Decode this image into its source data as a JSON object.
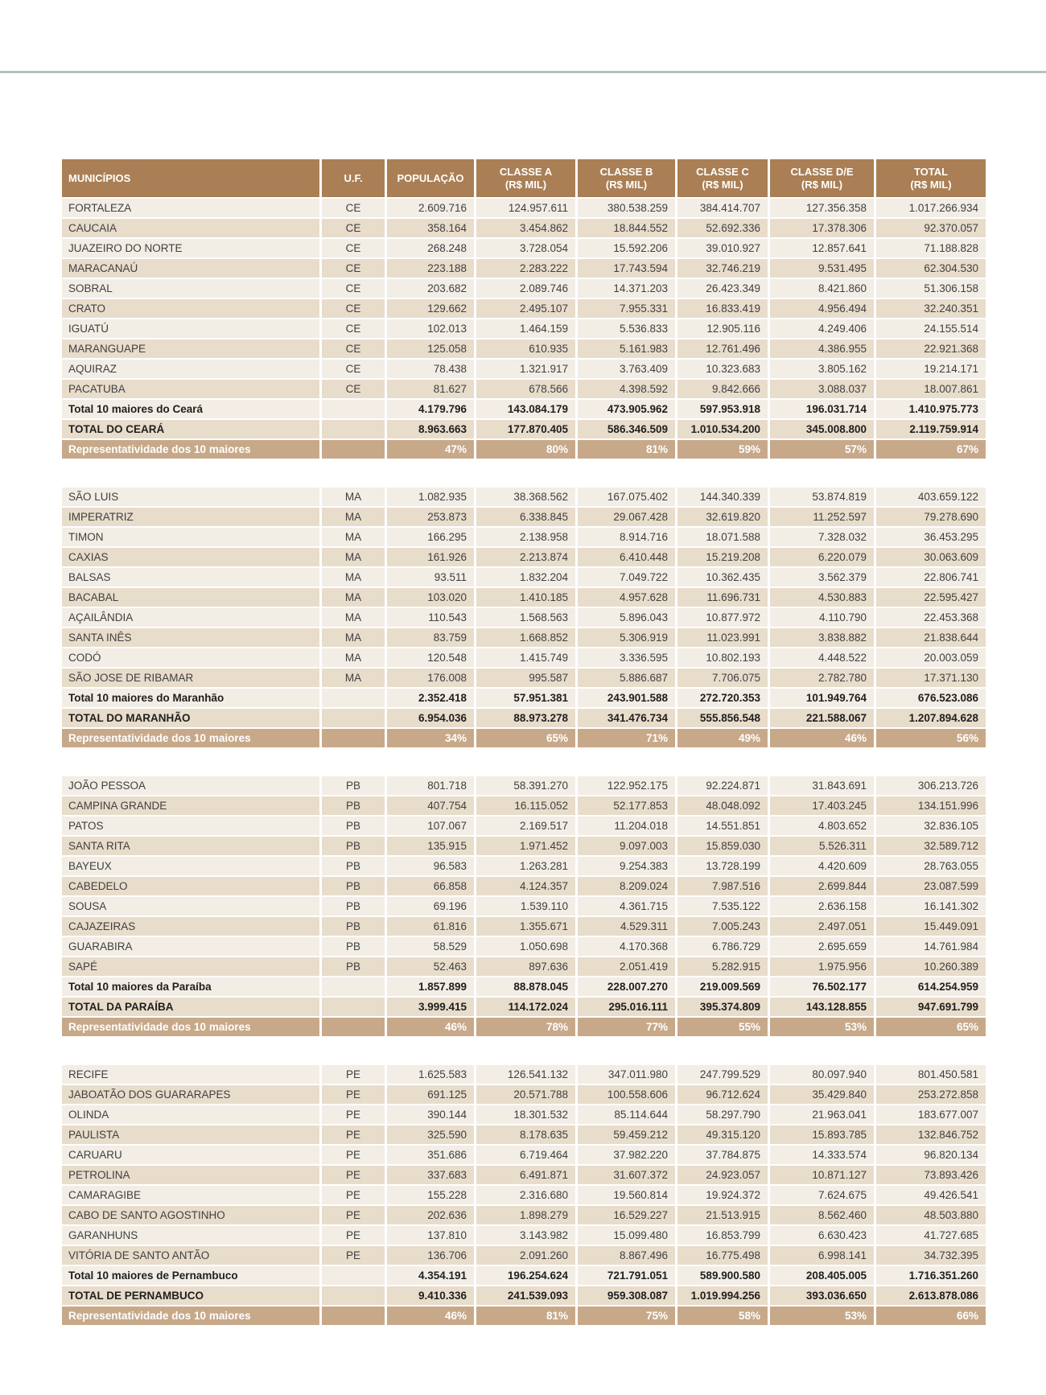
{
  "colors": {
    "rule_color": "#B5C2BA",
    "header_bg": "#AA7F55",
    "row_light": "#F2EDE5",
    "row_dark": "#E8DCCB",
    "rep_bg": "#C7A98A",
    "text": "#404040",
    "text_bold": "#1F1F1F"
  },
  "table": {
    "header": {
      "columns": [
        {
          "title": "MUNICÍPIOS",
          "unit": ""
        },
        {
          "title": "U.F.",
          "unit": ""
        },
        {
          "title": "POPULAÇÃO",
          "unit": ""
        },
        {
          "title": "CLASSE A",
          "unit": "(R$ MIL)"
        },
        {
          "title": "CLASSE B",
          "unit": "(R$ MIL)"
        },
        {
          "title": "CLASSE C",
          "unit": "(R$ MIL)"
        },
        {
          "title": "CLASSE D/E",
          "unit": "(R$ MIL)"
        },
        {
          "title": "TOTAL",
          "unit": "(R$ MIL)"
        }
      ]
    },
    "sections": [
      {
        "id": "ceara",
        "municipality_rows": [
          [
            "FORTALEZA",
            "CE",
            "2.609.716",
            "124.957.611",
            "380.538.259",
            "384.414.707",
            "127.356.358",
            "1.017.266.934"
          ],
          [
            "CAUCAIA",
            "CE",
            "358.164",
            "3.454.862",
            "18.844.552",
            "52.692.336",
            "17.378.306",
            "92.370.057"
          ],
          [
            "JUAZEIRO DO NORTE",
            "CE",
            "268.248",
            "3.728.054",
            "15.592.206",
            "39.010.927",
            "12.857.641",
            "71.188.828"
          ],
          [
            "MARACANAÚ",
            "CE",
            "223.188",
            "2.283.222",
            "17.743.594",
            "32.746.219",
            "9.531.495",
            "62.304.530"
          ],
          [
            "SOBRAL",
            "CE",
            "203.682",
            "2.089.746",
            "14.371.203",
            "26.423.349",
            "8.421.860",
            "51.306.158"
          ],
          [
            "CRATO",
            "CE",
            "129.662",
            "2.495.107",
            "7.955.331",
            "16.833.419",
            "4.956.494",
            "32.240.351"
          ],
          [
            "IGUATÚ",
            "CE",
            "102.013",
            "1.464.159",
            "5.536.833",
            "12.905.116",
            "4.249.406",
            "24.155.514"
          ],
          [
            "MARANGUAPE",
            "CE",
            "125.058",
            "610.935",
            "5.161.983",
            "12.761.496",
            "4.386.955",
            "22.921.368"
          ],
          [
            "AQUIRAZ",
            "CE",
            "78.438",
            "1.321.917",
            "3.763.409",
            "10.323.683",
            "3.805.162",
            "19.214.171"
          ],
          [
            "PACATUBA",
            "CE",
            "81.627",
            "678.566",
            "4.398.592",
            "9.842.666",
            "3.088.037",
            "18.007.861"
          ]
        ],
        "total10_row": [
          "Total 10 maiores do Ceará",
          "",
          "4.179.796",
          "143.084.179",
          "473.905.962",
          "597.953.918",
          "196.031.714",
          "1.410.975.773"
        ],
        "state_total_row": [
          "TOTAL DO CEARÁ",
          "",
          "8.963.663",
          "177.870.405",
          "586.346.509",
          "1.010.534.200",
          "345.008.800",
          "2.119.759.914"
        ],
        "representativity_row": [
          "Representatividade dos 10 maiores",
          "",
          "47%",
          "80%",
          "81%",
          "59%",
          "57%",
          "67%"
        ]
      },
      {
        "id": "maranhao",
        "municipality_rows": [
          [
            "SÃO LUIS",
            "MA",
            "1.082.935",
            "38.368.562",
            "167.075.402",
            "144.340.339",
            "53.874.819",
            "403.659.122"
          ],
          [
            "IMPERATRIZ",
            "MA",
            "253.873",
            "6.338.845",
            "29.067.428",
            "32.619.820",
            "11.252.597",
            "79.278.690"
          ],
          [
            "TIMON",
            "MA",
            "166.295",
            "2.138.958",
            "8.914.716",
            "18.071.588",
            "7.328.032",
            "36.453.295"
          ],
          [
            "CAXIAS",
            "MA",
            "161.926",
            "2.213.874",
            "6.410.448",
            "15.219.208",
            "6.220.079",
            "30.063.609"
          ],
          [
            "BALSAS",
            "MA",
            "93.511",
            "1.832.204",
            "7.049.722",
            "10.362.435",
            "3.562.379",
            "22.806.741"
          ],
          [
            "BACABAL",
            "MA",
            "103.020",
            "1.410.185",
            "4.957.628",
            "11.696.731",
            "4.530.883",
            "22.595.427"
          ],
          [
            "AÇAILÂNDIA",
            "MA",
            "110.543",
            "1.568.563",
            "5.896.043",
            "10.877.972",
            "4.110.790",
            "22.453.368"
          ],
          [
            "SANTA INÊS",
            "MA",
            "83.759",
            "1.668.852",
            "5.306.919",
            "11.023.991",
            "3.838.882",
            "21.838.644"
          ],
          [
            "CODÓ",
            "MA",
            "120.548",
            "1.415.749",
            "3.336.595",
            "10.802.193",
            "4.448.522",
            "20.003.059"
          ],
          [
            "SÃO JOSE DE RIBAMAR",
            "MA",
            "176.008",
            "995.587",
            "5.886.687",
            "7.706.075",
            "2.782.780",
            "17.371.130"
          ]
        ],
        "total10_row": [
          "Total 10 maiores do Maranhão",
          "",
          "2.352.418",
          "57.951.381",
          "243.901.588",
          "272.720.353",
          "101.949.764",
          "676.523.086"
        ],
        "state_total_row": [
          "TOTAL DO MARANHÃO",
          "",
          "6.954.036",
          "88.973.278",
          "341.476.734",
          "555.856.548",
          "221.588.067",
          "1.207.894.628"
        ],
        "representativity_row": [
          "Representatividade dos 10 maiores",
          "",
          "34%",
          "65%",
          "71%",
          "49%",
          "46%",
          "56%"
        ]
      },
      {
        "id": "paraiba",
        "municipality_rows": [
          [
            "JOÃO PESSOA",
            "PB",
            "801.718",
            "58.391.270",
            "122.952.175",
            "92.224.871",
            "31.843.691",
            "306.213.726"
          ],
          [
            "CAMPINA GRANDE",
            "PB",
            "407.754",
            "16.115.052",
            "52.177.853",
            "48.048.092",
            "17.403.245",
            "134.151.996"
          ],
          [
            "PATOS",
            "PB",
            "107.067",
            "2.169.517",
            "11.204.018",
            "14.551.851",
            "4.803.652",
            "32.836.105"
          ],
          [
            "SANTA RITA",
            "PB",
            "135.915",
            "1.971.452",
            "9.097.003",
            "15.859.030",
            "5.526.311",
            "32.589.712"
          ],
          [
            "BAYEUX",
            "PB",
            "96.583",
            "1.263.281",
            "9.254.383",
            "13.728.199",
            "4.420.609",
            "28.763.055"
          ],
          [
            "CABEDELO",
            "PB",
            "66.858",
            "4.124.357",
            "8.209.024",
            "7.987.516",
            "2.699.844",
            "23.087.599"
          ],
          [
            "SOUSA",
            "PB",
            "69.196",
            "1.539.110",
            "4.361.715",
            "7.535.122",
            "2.636.158",
            "16.141.302"
          ],
          [
            "CAJAZEIRAS",
            "PB",
            "61.816",
            "1.355.671",
            "4.529.311",
            "7.005.243",
            "2.497.051",
            "15.449.091"
          ],
          [
            "GUARABIRA",
            "PB",
            "58.529",
            "1.050.698",
            "4.170.368",
            "6.786.729",
            "2.695.659",
            "14.761.984"
          ],
          [
            "SAPÉ",
            "PB",
            "52.463",
            "897.636",
            "2.051.419",
            "5.282.915",
            "1.975.956",
            "10.260.389"
          ]
        ],
        "total10_row": [
          "Total 10 maiores da Paraíba",
          "",
          "1.857.899",
          "88.878.045",
          "228.007.270",
          "219.009.569",
          "76.502.177",
          "614.254.959"
        ],
        "state_total_row": [
          "TOTAL DA PARAÍBA",
          "",
          "3.999.415",
          "114.172.024",
          "295.016.111",
          "395.374.809",
          "143.128.855",
          "947.691.799"
        ],
        "representativity_row": [
          "Representatividade dos 10 maiores",
          "",
          "46%",
          "78%",
          "77%",
          "55%",
          "53%",
          "65%"
        ]
      },
      {
        "id": "pernambuco",
        "municipality_rows": [
          [
            "RECIFE",
            "PE",
            "1.625.583",
            "126.541.132",
            "347.011.980",
            "247.799.529",
            "80.097.940",
            "801.450.581"
          ],
          [
            "JABOATÃO DOS GUARARAPES",
            "PE",
            "691.125",
            "20.571.788",
            "100.558.606",
            "96.712.624",
            "35.429.840",
            "253.272.858"
          ],
          [
            "OLINDA",
            "PE",
            "390.144",
            "18.301.532",
            "85.114.644",
            "58.297.790",
            "21.963.041",
            "183.677.007"
          ],
          [
            "PAULISTA",
            "PE",
            "325.590",
            "8.178.635",
            "59.459.212",
            "49.315.120",
            "15.893.785",
            "132.846.752"
          ],
          [
            "CARUARU",
            "PE",
            "351.686",
            "6.719.464",
            "37.982.220",
            "37.784.875",
            "14.333.574",
            "96.820.134"
          ],
          [
            "PETROLINA",
            "PE",
            "337.683",
            "6.491.871",
            "31.607.372",
            "24.923.057",
            "10.871.127",
            "73.893.426"
          ],
          [
            "CAMARAGIBE",
            "PE",
            "155.228",
            "2.316.680",
            "19.560.814",
            "19.924.372",
            "7.624.675",
            "49.426.541"
          ],
          [
            "CABO DE SANTO AGOSTINHO",
            "PE",
            "202.636",
            "1.898.279",
            "16.529.227",
            "21.513.915",
            "8.562.460",
            "48.503.880"
          ],
          [
            "GARANHUNS",
            "PE",
            "137.810",
            "3.143.982",
            "15.099.480",
            "16.853.799",
            "6.630.423",
            "41.727.685"
          ],
          [
            "VITÓRIA DE SANTO ANTÃO",
            "PE",
            "136.706",
            "2.091.260",
            "8.867.496",
            "16.775.498",
            "6.998.141",
            "34.732.395"
          ]
        ],
        "total10_row": [
          "Total 10 maiores de Pernambuco",
          "",
          "4.354.191",
          "196.254.624",
          "721.791.051",
          "589.900.580",
          "208.405.005",
          "1.716.351.260"
        ],
        "state_total_row": [
          "TOTAL DE PERNAMBUCO",
          "",
          "9.410.336",
          "241.539.093",
          "959.308.087",
          "1.019.994.256",
          "393.036.650",
          "2.613.878.086"
        ],
        "representativity_row": [
          "Representatividade dos 10 maiores",
          "",
          "46%",
          "81%",
          "75%",
          "58%",
          "53%",
          "66%"
        ]
      }
    ]
  }
}
